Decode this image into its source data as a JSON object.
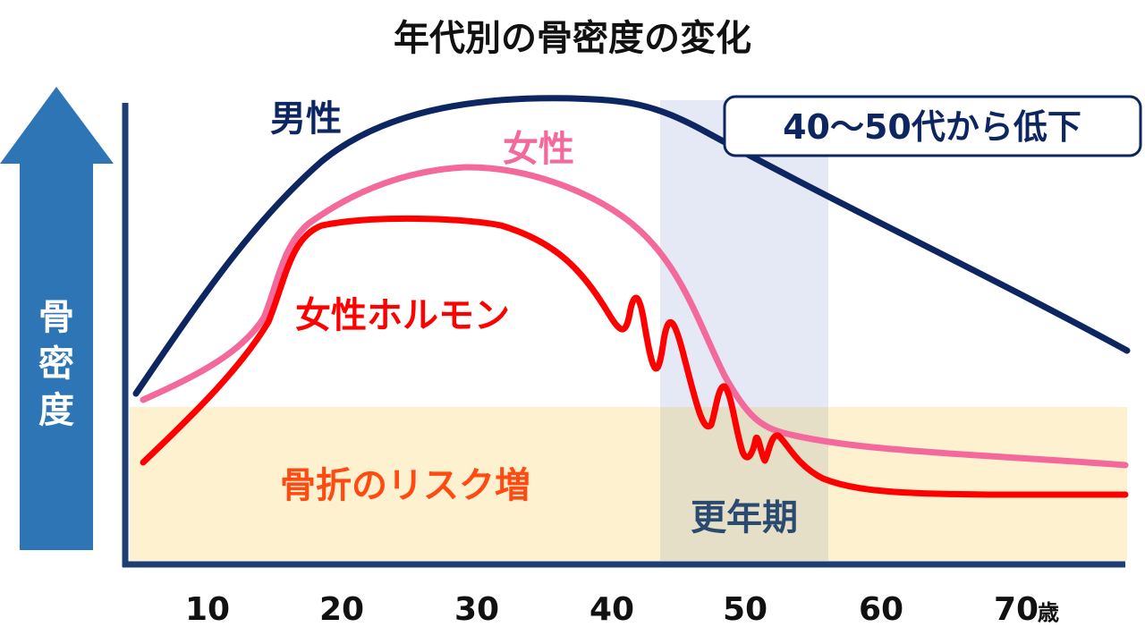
{
  "title": "年代別の骨密度の変化",
  "y_axis_label": [
    "骨",
    "密",
    "度"
  ],
  "x_ticks": [
    "10",
    "20",
    "30",
    "40",
    "50",
    "60",
    "70"
  ],
  "x_unit": "歳",
  "series_labels": {
    "male": "男性",
    "female": "女性",
    "hormone": "女性ホルモン"
  },
  "callout": "40〜50代から低下",
  "fracture_zone_label": "骨折のリスク増",
  "menopause_label": "更年期",
  "colors": {
    "male": "#0d2661",
    "female": "#f4699b",
    "hormone": "#ff0000",
    "axis": "#1f3f73",
    "arrow": "#2e75b6",
    "menopause_band": "#dfe5f3",
    "fracture_band": "#fdf1cf",
    "fracture_text": "#ff4a12",
    "menopause_text": "#2b4a70"
  }
}
